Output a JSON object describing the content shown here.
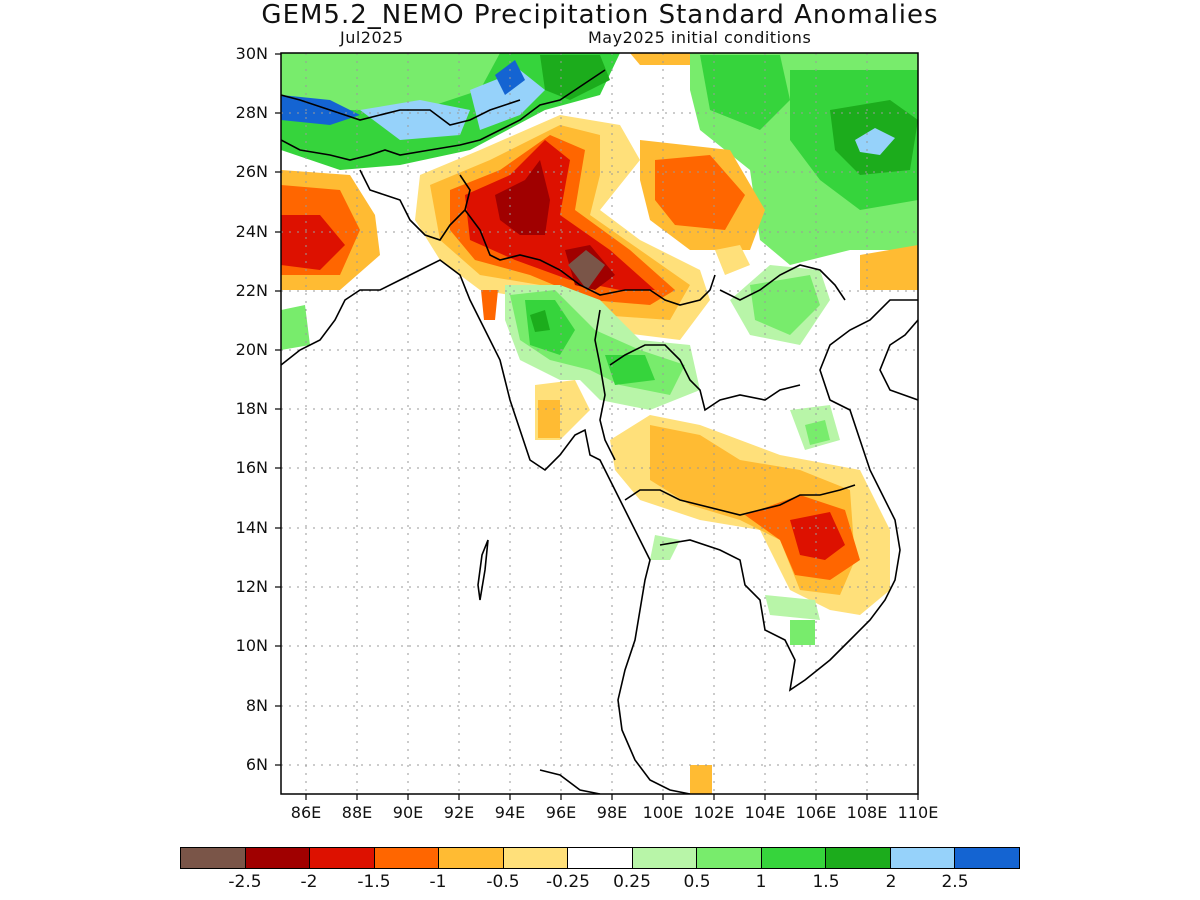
{
  "title": "GEM5.2_NEMO Precipitation Standard Anomalies",
  "subtitle_left": "Jul2025",
  "subtitle_right": "May2025 initial conditions",
  "lat_labels": [
    "30N",
    "28N",
    "26N",
    "24N",
    "22N",
    "20N",
    "18N",
    "16N",
    "14N",
    "12N",
    "10N",
    "8N",
    "6N"
  ],
  "lon_labels": [
    "86E",
    "88E",
    "90E",
    "92E",
    "94E",
    "96E",
    "98E",
    "100E",
    "102E",
    "104E",
    "106E",
    "108E",
    "110E"
  ],
  "legend": {
    "colors": [
      "#7a5548",
      "#a00000",
      "#dd1100",
      "#ff6600",
      "#ffbb33",
      "#ffe07a",
      "#ffffff",
      "#b8f5a8",
      "#78ec6c",
      "#36d43c",
      "#1cac1c",
      "#96d2fa",
      "#1464d2"
    ],
    "labels": [
      "-2.5",
      "-2",
      "-1.5",
      "-1",
      "-0.5",
      "-0.25",
      "0.25",
      "0.5",
      "1",
      "1.5",
      "2",
      "2.5"
    ]
  }
}
